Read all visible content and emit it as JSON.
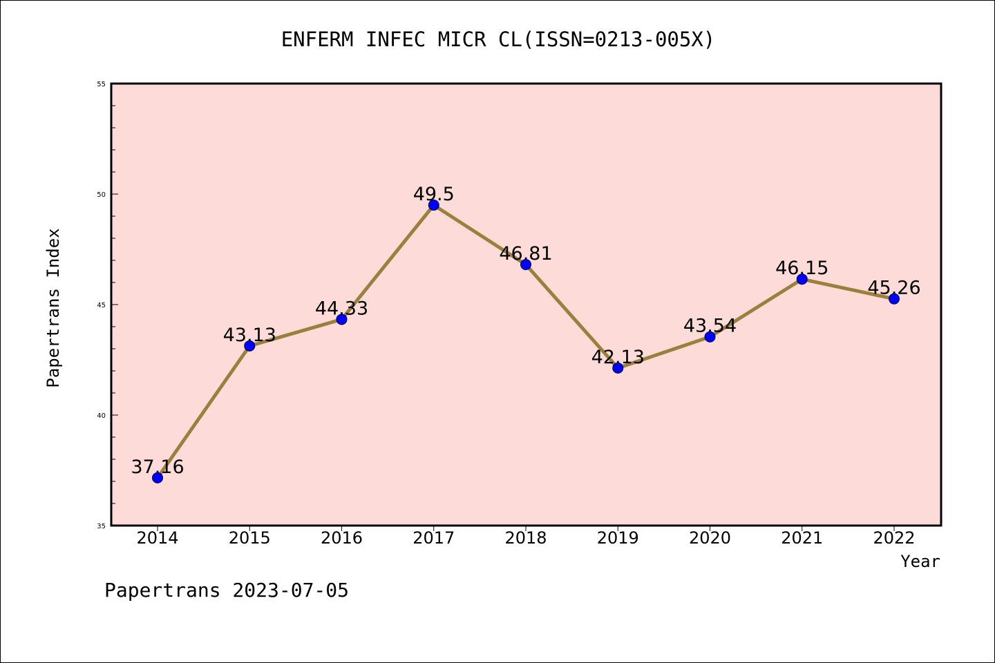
{
  "chart_data": {
    "type": "line",
    "title": "ENFERM INFEC MICR CL(ISSN=0213-005X)",
    "xlabel": "Year",
    "ylabel": "Papertrans Index",
    "categories": [
      "2014",
      "2015",
      "2016",
      "2017",
      "2018",
      "2019",
      "2020",
      "2021",
      "2022"
    ],
    "values": [
      37.16,
      43.13,
      44.33,
      49.5,
      46.81,
      42.13,
      43.54,
      46.15,
      45.26
    ],
    "data_labels": [
      "37.16",
      "43.13",
      "44.33",
      "49.5",
      "46.81",
      "42.13",
      "43.54",
      "46.15",
      "45.26"
    ],
    "ylim": [
      35,
      55
    ],
    "yticks": [
      35,
      40,
      45,
      50,
      55
    ],
    "yticks_minor_step": 1,
    "grid": false,
    "legend": "none",
    "footer": "Papertrans 2023-07-05",
    "colors": {
      "plot_background": "#fddbd8",
      "line": "#9b7f3c",
      "marker": "#0000ff",
      "frame": "#000000"
    }
  }
}
